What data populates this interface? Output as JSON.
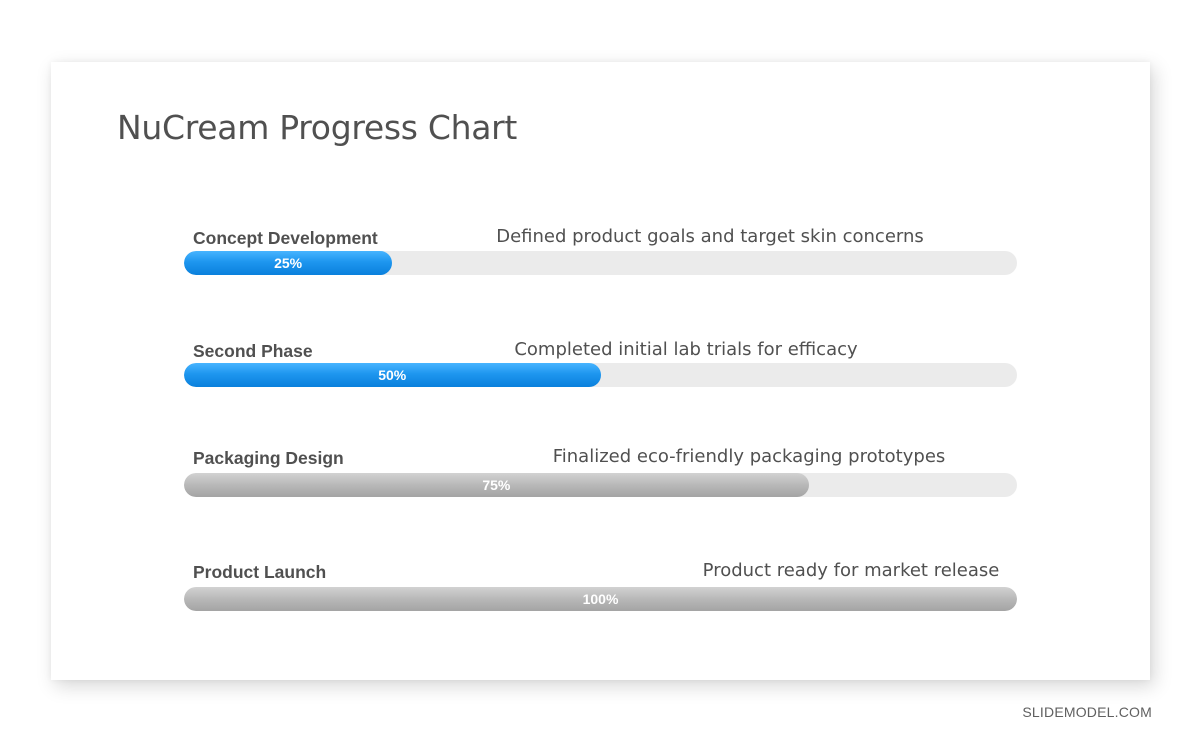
{
  "title": "NuCream Progress Chart",
  "watermark": "SLIDEMODEL.COM",
  "colors": {
    "active_fill": "#1e96ef",
    "complete_fill": "#b8b8b8",
    "track": "#ebebeb",
    "text": "#505050"
  },
  "chart_data": {
    "type": "bar",
    "orientation": "horizontal",
    "title": "NuCream Progress Chart",
    "xlim": [
      0,
      100
    ],
    "categories": [
      "Concept Development",
      "Second Phase",
      "Packaging Design",
      "Product Launch"
    ],
    "values": [
      25,
      50,
      75,
      100
    ],
    "stages": [
      {
        "label": "Concept Development",
        "description": "Defined product goals and target skin concerns",
        "value": 25,
        "value_label": "25%",
        "fill": "blue"
      },
      {
        "label": "Second Phase",
        "description": "Completed initial lab trials for efficacy",
        "value": 50,
        "value_label": "50%",
        "fill": "blue"
      },
      {
        "label": "Packaging Design",
        "description": "Finalized eco-friendly packaging prototypes",
        "value": 75,
        "value_label": "75%",
        "fill": "gray"
      },
      {
        "label": "Product Launch",
        "description": "Product ready for market release",
        "value": 100,
        "value_label": "100%",
        "fill": "gray"
      }
    ]
  }
}
